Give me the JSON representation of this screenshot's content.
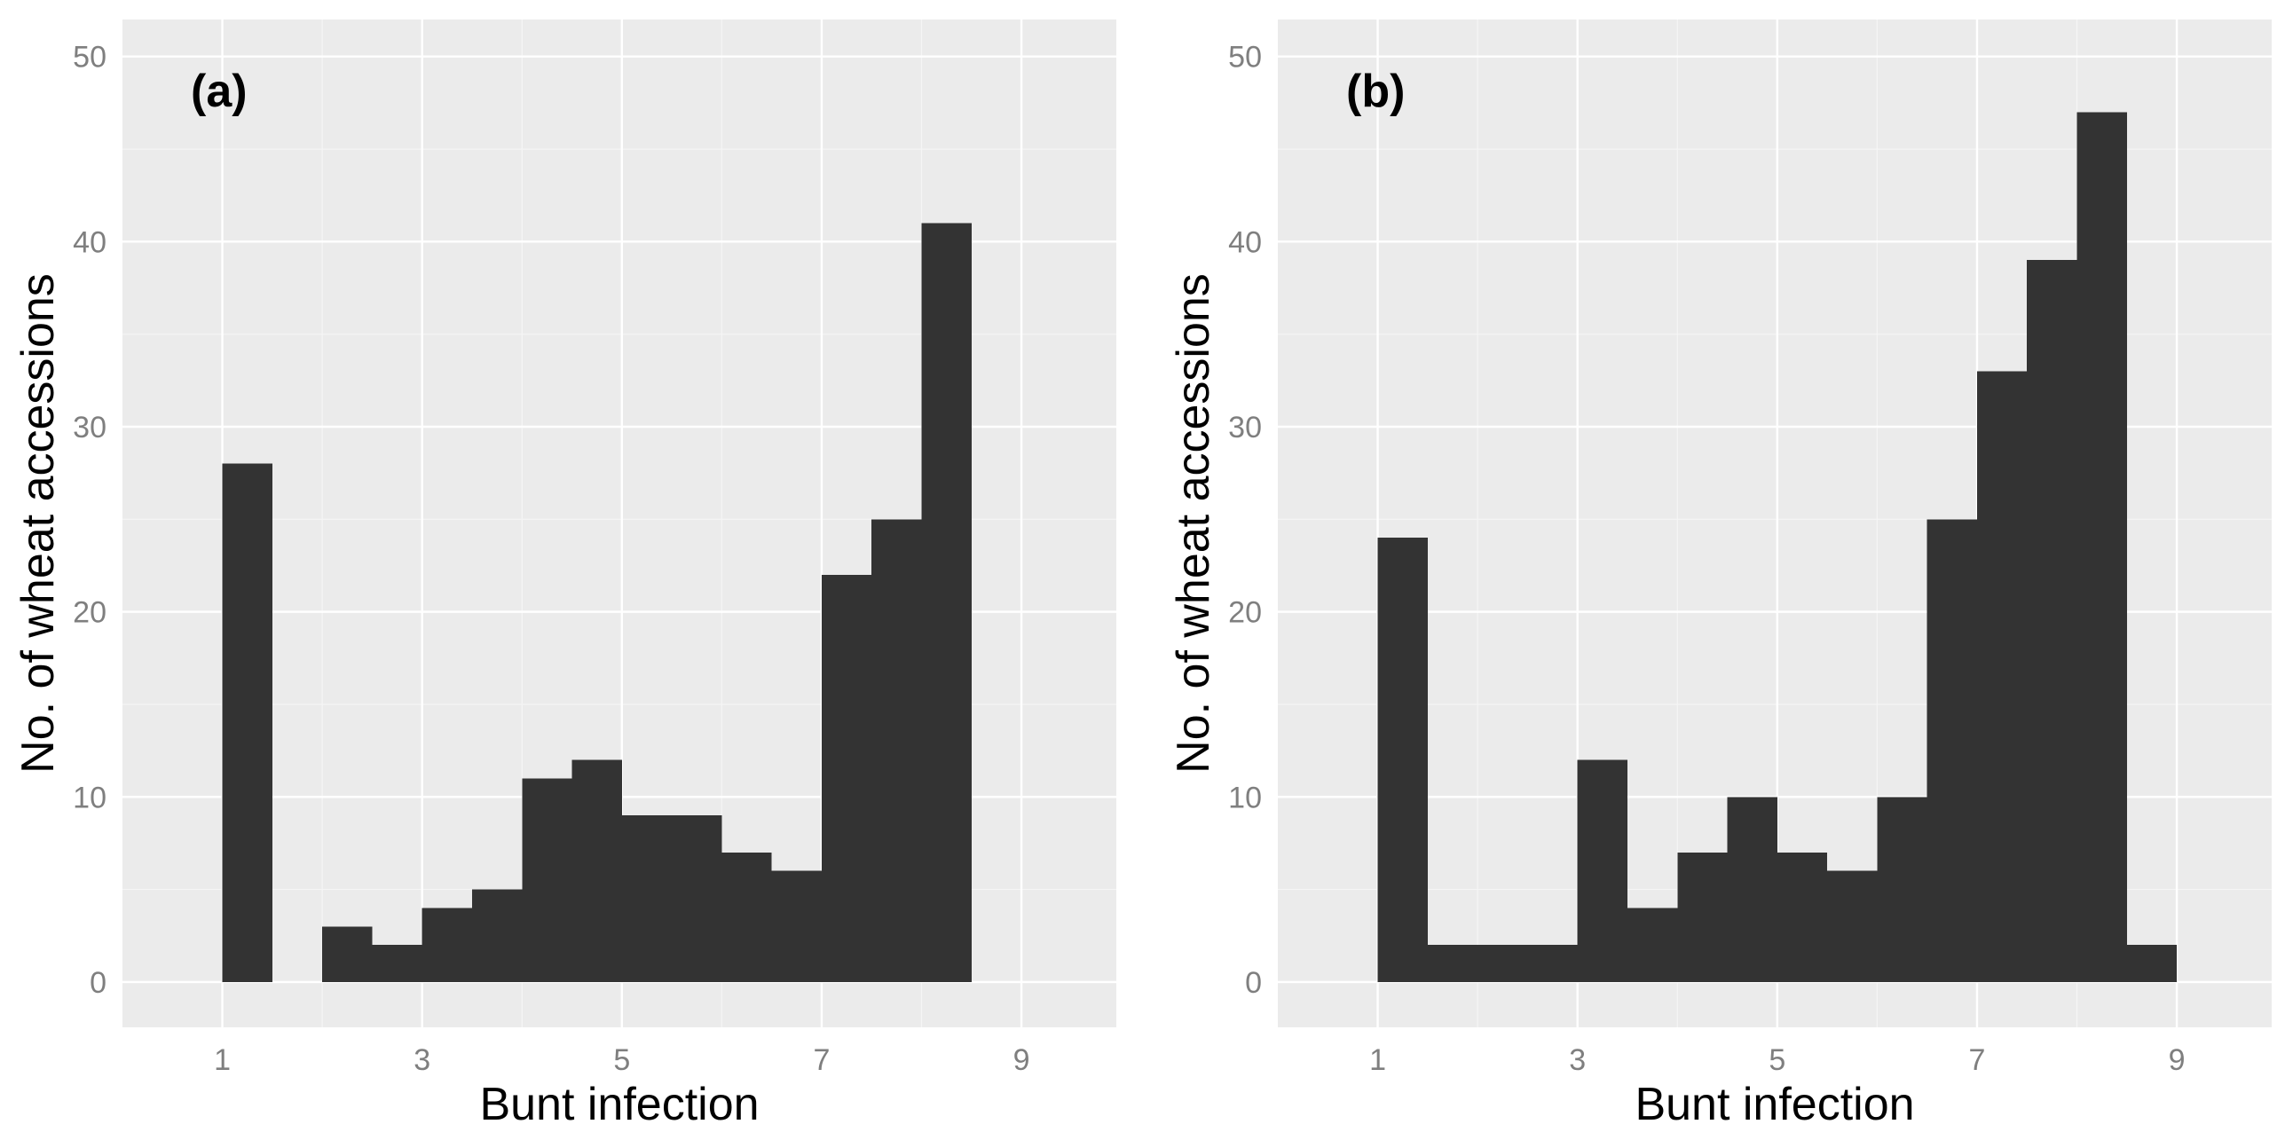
{
  "figure": {
    "colors": {
      "panel_background": "#ebebeb",
      "grid_major": "#ffffff",
      "grid_minor": "#f5f5f5",
      "bar_fill": "#333333",
      "tick_text": "#7f7f7f",
      "title_text": "#000000"
    }
  },
  "chart_data": [
    {
      "type": "bar",
      "panel_label": "(a)",
      "xlabel": "Bunt infection",
      "ylabel": "No. of wheat accessions",
      "xlim": [
        0.0,
        9.95
      ],
      "ylim": [
        -2.45,
        52.0
      ],
      "x_ticks": [
        1,
        3,
        5,
        7,
        9
      ],
      "x_tick_labels": [
        "1",
        "3",
        "5",
        "7",
        "9"
      ],
      "y_ticks": [
        0,
        10,
        20,
        30,
        40,
        50
      ],
      "y_tick_labels": [
        "0",
        "10",
        "20",
        "30",
        "40",
        "50"
      ],
      "bin_width": 0.5,
      "bins": [
        {
          "x0": 1.0,
          "x1": 1.5,
          "count": 28
        },
        {
          "x0": 1.5,
          "x1": 2.0,
          "count": 0
        },
        {
          "x0": 2.0,
          "x1": 2.5,
          "count": 3
        },
        {
          "x0": 2.5,
          "x1": 3.0,
          "count": 2
        },
        {
          "x0": 3.0,
          "x1": 3.5,
          "count": 4
        },
        {
          "x0": 3.5,
          "x1": 4.0,
          "count": 5
        },
        {
          "x0": 4.0,
          "x1": 4.5,
          "count": 11
        },
        {
          "x0": 4.5,
          "x1": 5.0,
          "count": 12
        },
        {
          "x0": 5.0,
          "x1": 5.5,
          "count": 9
        },
        {
          "x0": 5.5,
          "x1": 6.0,
          "count": 9
        },
        {
          "x0": 6.0,
          "x1": 6.5,
          "count": 7
        },
        {
          "x0": 6.5,
          "x1": 7.0,
          "count": 6
        },
        {
          "x0": 7.0,
          "x1": 7.5,
          "count": 22
        },
        {
          "x0": 7.5,
          "x1": 8.0,
          "count": 25
        },
        {
          "x0": 8.0,
          "x1": 8.5,
          "count": 41
        }
      ],
      "grid": true,
      "legend": "none"
    },
    {
      "type": "bar",
      "panel_label": "(b)",
      "xlabel": "Bunt infection",
      "ylabel": "No. of wheat accessions",
      "xlim": [
        0.0,
        9.95
      ],
      "ylim": [
        -2.45,
        52.0
      ],
      "x_ticks": [
        1,
        3,
        5,
        7,
        9
      ],
      "x_tick_labels": [
        "1",
        "3",
        "5",
        "7",
        "9"
      ],
      "y_ticks": [
        0,
        10,
        20,
        30,
        40,
        50
      ],
      "y_tick_labels": [
        "0",
        "10",
        "20",
        "30",
        "40",
        "50"
      ],
      "bin_width": 0.5,
      "bins": [
        {
          "x0": 1.0,
          "x1": 1.5,
          "count": 24
        },
        {
          "x0": 1.5,
          "x1": 2.0,
          "count": 2
        },
        {
          "x0": 2.0,
          "x1": 2.5,
          "count": 2
        },
        {
          "x0": 2.5,
          "x1": 3.0,
          "count": 2
        },
        {
          "x0": 3.0,
          "x1": 3.5,
          "count": 12
        },
        {
          "x0": 3.5,
          "x1": 4.0,
          "count": 4
        },
        {
          "x0": 4.0,
          "x1": 4.5,
          "count": 7
        },
        {
          "x0": 4.5,
          "x1": 5.0,
          "count": 10
        },
        {
          "x0": 5.0,
          "x1": 5.5,
          "count": 7
        },
        {
          "x0": 5.5,
          "x1": 6.0,
          "count": 6
        },
        {
          "x0": 6.0,
          "x1": 6.5,
          "count": 10
        },
        {
          "x0": 6.5,
          "x1": 7.0,
          "count": 25
        },
        {
          "x0": 7.0,
          "x1": 7.5,
          "count": 33
        },
        {
          "x0": 7.5,
          "x1": 8.0,
          "count": 39
        },
        {
          "x0": 8.0,
          "x1": 8.5,
          "count": 47
        },
        {
          "x0": 8.5,
          "x1": 9.0,
          "count": 2
        }
      ],
      "grid": true,
      "legend": "none"
    }
  ]
}
